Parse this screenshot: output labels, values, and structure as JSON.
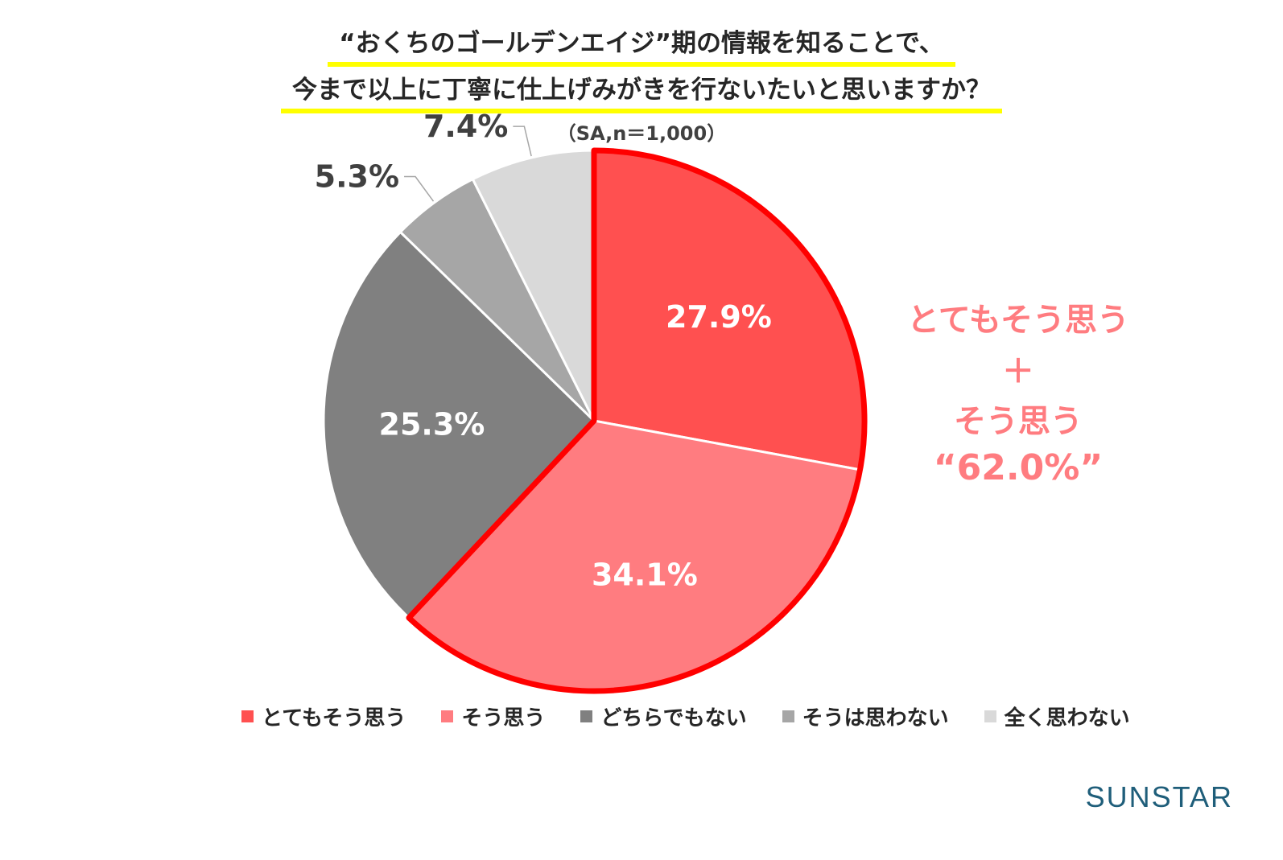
{
  "title_line1": "“おくちのゴールデンエイジ”期の情報を知ることで、",
  "title_line2": "今まで以上に丁寧に仕上げみがきを行ないたいと思いますか？",
  "subtitle": "（SA,n＝1,000）",
  "chart_data": {
    "type": "pie",
    "categories": [
      "とてもそう思う",
      "そう思う",
      "どちらでもない",
      "そうは思わない",
      "全く思わない"
    ],
    "values": [
      27.9,
      34.1,
      25.3,
      5.3,
      7.4
    ],
    "value_labels": [
      "27.9%",
      "34.1%",
      "25.3%",
      "5.3%",
      "7.4%"
    ],
    "colors": [
      "#ff5050",
      "#ff7c80",
      "#808080",
      "#a6a6a6",
      "#d9d9d9"
    ],
    "highlight_color": "#ff0000",
    "legend_placement": "bottom"
  },
  "callout": {
    "line1": "とてもそう思う",
    "line2": "＋",
    "line3": "そう思う",
    "line4": "“62.0%”"
  },
  "brand": "SUNSTAR"
}
